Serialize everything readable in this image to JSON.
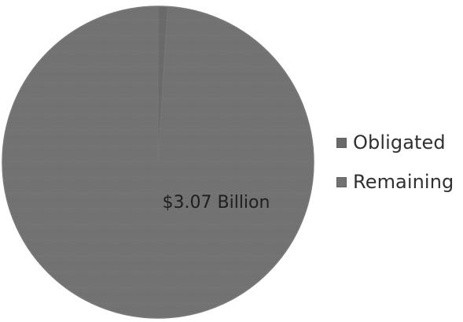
{
  "chart_data": {
    "type": "pie",
    "categories": [
      "Obligated",
      "Remaining"
    ],
    "values": [
      1,
      99
    ],
    "data_label": "$3.07 Billion",
    "legend": [
      "Obligated",
      "Remaining"
    ],
    "legend_position": "right",
    "colors": [
      "#6a6a6a",
      "#727272"
    ],
    "border_color": "#777777",
    "start_angle_deg": -90
  }
}
